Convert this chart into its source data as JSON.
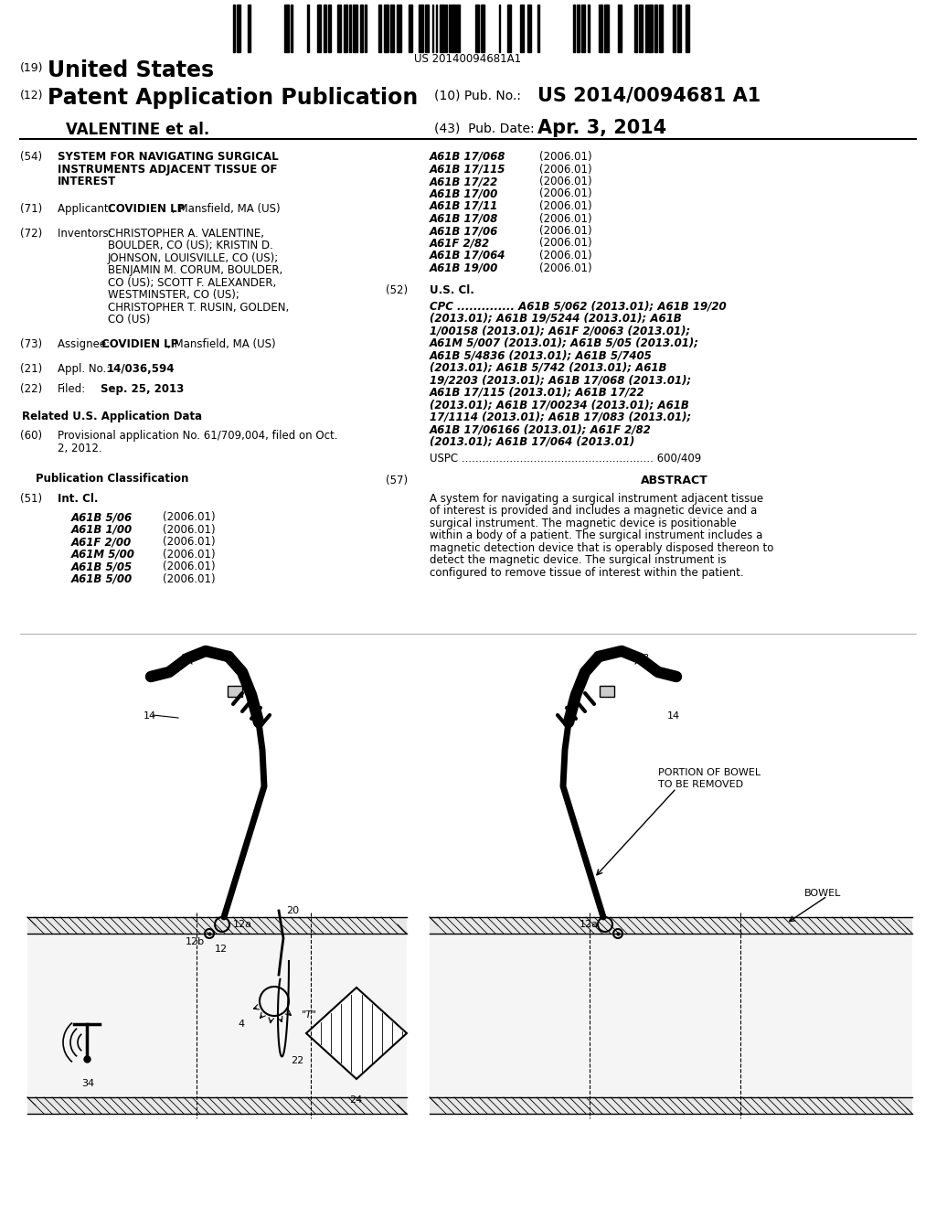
{
  "bg_color": "#ffffff",
  "barcode_number": "US 20140094681A1",
  "h19_label": "(19)",
  "h19_text": "United States",
  "h12_label": "(12)",
  "h12_text": "Patent Application Publication",
  "h10_text": "(10) Pub. No.:",
  "pub_no": "US 2014/0094681 A1",
  "h43_text": "(43)  Pub. Date:",
  "pub_date": "Apr. 3, 2014",
  "applicant_line": "VALENTINE et al.",
  "s54_label": "(54)",
  "s54_line1": "SYSTEM FOR NAVIGATING SURGICAL",
  "s54_line2": "INSTRUMENTS ADJACENT TISSUE OF",
  "s54_line3": "INTEREST",
  "s71_label": "(71)",
  "s71_pre": "Applicant: ",
  "s71_bold": "COVIDIEN LP",
  "s71_post": ", Mansfield, MA (US)",
  "s72_label": "(72)",
  "s72_pre": "Inventors: ",
  "s72_inv": "CHRISTOPHER A. VALENTINE,\nBOULDER, CO (US); KRISTIN D.\nJOHNSON, LOUISVILLE, CO (US);\nBENJAMIN M. CORUM, BOULDER,\nCO (US); SCOTT F. ALEXANDER,\nWESTMINSTER, CO (US);\nCHRISTOPHER T. RUSIN, GOLDEN,\nCO (US)",
  "s73_label": "(73)",
  "s73_pre": "Assignee: ",
  "s73_bold": "COVIDIEN LP",
  "s73_post": ", Mansfield, MA (US)",
  "s21_label": "(21)",
  "s21_pre": "Appl. No.: ",
  "s21_bold": "14/036,594",
  "s22_label": "(22)",
  "s22_pre": "Filed:    ",
  "s22_bold": "Sep. 25, 2013",
  "rel_title": "Related U.S. Application Data",
  "s60_label": "(60)",
  "s60_text": "Provisional application No. 61/709,004, filed on Oct.\n2, 2012.",
  "pub_class_title": "Publication Classification",
  "s51_label": "(51)",
  "s51_head": "Int. Cl.",
  "int_cl": [
    [
      "A61B 5/06",
      "(2006.01)"
    ],
    [
      "A61B 1/00",
      "(2006.01)"
    ],
    [
      "A61F 2/00",
      "(2006.01)"
    ],
    [
      "A61M 5/00",
      "(2006.01)"
    ],
    [
      "A61B 5/05",
      "(2006.01)"
    ],
    [
      "A61B 5/00",
      "(2006.01)"
    ]
  ],
  "right_cl": [
    [
      "A61B 17/068",
      "(2006.01)"
    ],
    [
      "A61B 17/115",
      "(2006.01)"
    ],
    [
      "A61B 17/22",
      "(2006.01)"
    ],
    [
      "A61B 17/00",
      "(2006.01)"
    ],
    [
      "A61B 17/11",
      "(2006.01)"
    ],
    [
      "A61B 17/08",
      "(2006.01)"
    ],
    [
      "A61B 17/06",
      "(2006.01)"
    ],
    [
      "A61F 2/82",
      "(2006.01)"
    ],
    [
      "A61B 17/064",
      "(2006.01)"
    ],
    [
      "A61B 19/00",
      "(2006.01)"
    ]
  ],
  "s52_label": "(52)",
  "s52_head": "U.S. Cl.",
  "cpc_lines": [
    "CPC .............. A61B 5/062 (2013.01); A61B 19/20",
    "(2013.01); A61B 19/5244 (2013.01); A61B",
    "1/00158 (2013.01); A61F 2/0063 (2013.01);",
    "A61M 5/007 (2013.01); A61B 5/05 (2013.01);",
    "A61B 5/4836 (2013.01); A61B 5/7405",
    "(2013.01); A61B 5/742 (2013.01); A61B",
    "19/2203 (2013.01); A61B 17/068 (2013.01);",
    "A61B 17/115 (2013.01); A61B 17/22",
    "(2013.01); A61B 17/00234 (2013.01); A61B",
    "17/1114 (2013.01); A61B 17/083 (2013.01);",
    "A61B 17/06166 (2013.01); A61F 2/82",
    "(2013.01); A61B 17/064 (2013.01)"
  ],
  "uspc_line": "USPC ........................................................ 600/409",
  "s57_label": "(57)",
  "s57_head": "ABSTRACT",
  "abstract": "A system for navigating a surgical instrument adjacent tissue of interest is provided and includes a magnetic device and a surgical instrument. The magnetic device is positionable within a body of a patient. The surgical instrument includes a magnetic detection device that is operably disposed thereon to detect the magnetic device. The surgical instrument is configured to remove tissue of interest within the patient."
}
